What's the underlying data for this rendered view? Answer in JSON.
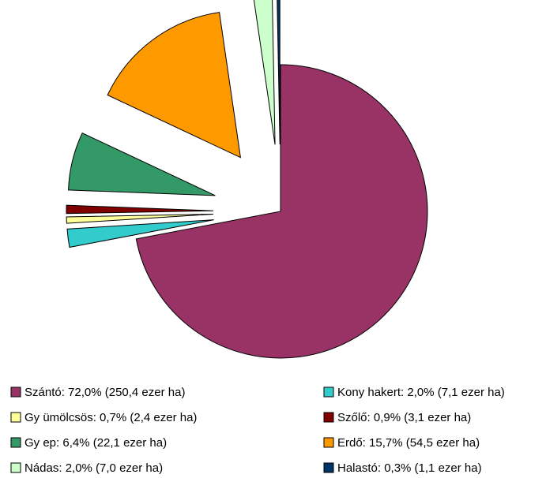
{
  "chart_data": {
    "type": "pie",
    "categories": [
      "Szántó: 72,0% (250,4 ezer ha)",
      "Kony hakert: 2,0% (7,1 ezer ha)",
      "Gy ümölcsös: 0,7% (2,4 ezer ha)",
      "Szőlő: 0,9% (3,1 ezer ha)",
      "Gy ep: 6,4% (22,1 ezer ha)",
      "Erdő: 15,7% (54,5 ezer ha)",
      "Nádas: 2,0% (7,0 ezer ha)",
      "Halastó: 0,3% (1,1 ezer ha)"
    ],
    "values": [
      72.0,
      2.0,
      0.7,
      0.9,
      6.4,
      15.7,
      2.0,
      0.3
    ],
    "colors": [
      "#993366",
      "#33cccc",
      "#ffff99",
      "#800000",
      "#339966",
      "#ff9900",
      "#ccffcc",
      "#003366"
    ],
    "legend": "bottom"
  }
}
